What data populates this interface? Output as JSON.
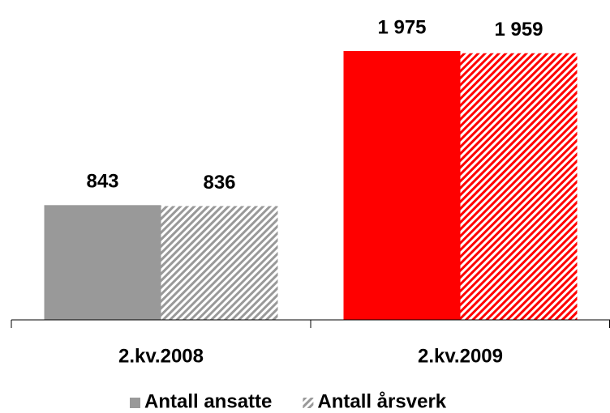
{
  "chart_data": {
    "type": "bar",
    "categories": [
      "2.kv.2008",
      "2.kv.2009"
    ],
    "category_colors": [
      "#999999",
      "#ff0000"
    ],
    "series": [
      {
        "name": "Antall ansatte",
        "color": "#999999",
        "pattern": "solid",
        "values": [
          843,
          1975
        ],
        "value_labels": [
          "843",
          "1 975"
        ]
      },
      {
        "name": "Antall årsverk",
        "color": "#999999",
        "pattern": "hatch",
        "values": [
          836,
          1959
        ],
        "value_labels": [
          "836",
          "1 959"
        ]
      }
    ],
    "ylim": [
      0,
      2350
    ]
  }
}
